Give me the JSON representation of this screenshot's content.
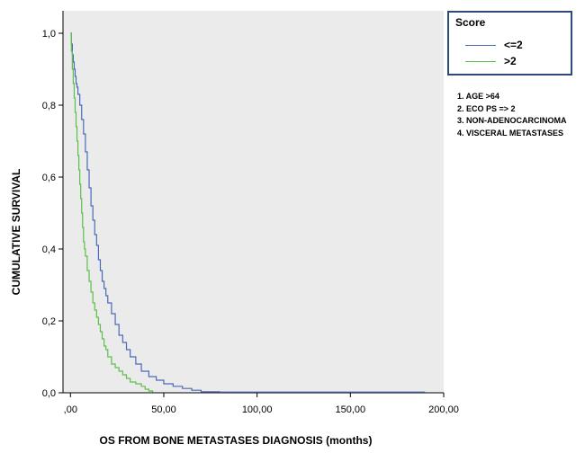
{
  "chart_data": {
    "type": "line",
    "title": "",
    "xlabel": "OS FROM BONE METASTASES DIAGNOSIS (months)",
    "ylabel": "CUMULATIVE SURVIVAL",
    "xlim": [
      -4,
      200
    ],
    "ylim": [
      0,
      1
    ],
    "x_ticks": [
      0,
      50,
      100,
      150,
      200
    ],
    "x_tick_labels": [
      ",00",
      "50,00",
      "100,00",
      "150,00",
      "200,00"
    ],
    "y_ticks": [
      0,
      0.2,
      0.4,
      0.6,
      0.8,
      1.0
    ],
    "y_tick_labels": [
      "0,0",
      "0,2",
      "0,4",
      "0,6",
      "0,8",
      "1,0"
    ],
    "grid": false,
    "plot_background": "#ebebeb",
    "legend": {
      "title": "Score",
      "placement": "right",
      "entries": [
        {
          "label": "<=2",
          "color": "#4a6ab8"
        },
        {
          "label": ">2",
          "color": "#5cbf4a"
        }
      ]
    },
    "annotations": [
      "1. AGE >64",
      "2. ECO PS => 2",
      "3. NON-ADENOCARCINOMA",
      "4. VISCERAL METASTASES"
    ],
    "series": [
      {
        "name": "<=2",
        "color": "#4a6ab8",
        "step": true,
        "points": [
          [
            0,
            1.0
          ],
          [
            0.5,
            0.97
          ],
          [
            1,
            0.94
          ],
          [
            1.5,
            0.92
          ],
          [
            2,
            0.9
          ],
          [
            2.5,
            0.88
          ],
          [
            3,
            0.86
          ],
          [
            3.5,
            0.85
          ],
          [
            4,
            0.83
          ],
          [
            5,
            0.8
          ],
          [
            6,
            0.76
          ],
          [
            7,
            0.72
          ],
          [
            8,
            0.67
          ],
          [
            9,
            0.62
          ],
          [
            10,
            0.57
          ],
          [
            11,
            0.52
          ],
          [
            12,
            0.48
          ],
          [
            13,
            0.44
          ],
          [
            14,
            0.41
          ],
          [
            15,
            0.37
          ],
          [
            16,
            0.34
          ],
          [
            17,
            0.31
          ],
          [
            18,
            0.29
          ],
          [
            19,
            0.27
          ],
          [
            20,
            0.25
          ],
          [
            22,
            0.22
          ],
          [
            24,
            0.19
          ],
          [
            26,
            0.16
          ],
          [
            28,
            0.14
          ],
          [
            30,
            0.12
          ],
          [
            32,
            0.1
          ],
          [
            35,
            0.08
          ],
          [
            38,
            0.06
          ],
          [
            42,
            0.045
          ],
          [
            46,
            0.035
          ],
          [
            50,
            0.025
          ],
          [
            55,
            0.018
          ],
          [
            60,
            0.012
          ],
          [
            65,
            0.007
          ],
          [
            70,
            0.003
          ],
          [
            80,
            0.002
          ],
          [
            100,
            0.002
          ],
          [
            150,
            0.002
          ],
          [
            190,
            0.002
          ]
        ]
      },
      {
        "name": ">2",
        "color": "#5cbf4a",
        "step": true,
        "points": [
          [
            0,
            1.0
          ],
          [
            0.5,
            0.95
          ],
          [
            1,
            0.9
          ],
          [
            1.5,
            0.86
          ],
          [
            2,
            0.82
          ],
          [
            2.5,
            0.78
          ],
          [
            3,
            0.74
          ],
          [
            3.5,
            0.7
          ],
          [
            4,
            0.66
          ],
          [
            4.5,
            0.62
          ],
          [
            5,
            0.58
          ],
          [
            5.5,
            0.54
          ],
          [
            6,
            0.5
          ],
          [
            6.5,
            0.46
          ],
          [
            7,
            0.42
          ],
          [
            7.5,
            0.4
          ],
          [
            8,
            0.38
          ],
          [
            9,
            0.34
          ],
          [
            10,
            0.31
          ],
          [
            11,
            0.28
          ],
          [
            12,
            0.25
          ],
          [
            13,
            0.23
          ],
          [
            14,
            0.21
          ],
          [
            15,
            0.19
          ],
          [
            16,
            0.17
          ],
          [
            17,
            0.15
          ],
          [
            18,
            0.13
          ],
          [
            19,
            0.12
          ],
          [
            20,
            0.1
          ],
          [
            22,
            0.08
          ],
          [
            24,
            0.07
          ],
          [
            26,
            0.06
          ],
          [
            28,
            0.05
          ],
          [
            30,
            0.04
          ],
          [
            32,
            0.03
          ],
          [
            35,
            0.025
          ],
          [
            38,
            0.018
          ],
          [
            40,
            0.01
          ],
          [
            42,
            0.005
          ],
          [
            44,
            0.002
          ]
        ]
      }
    ]
  }
}
